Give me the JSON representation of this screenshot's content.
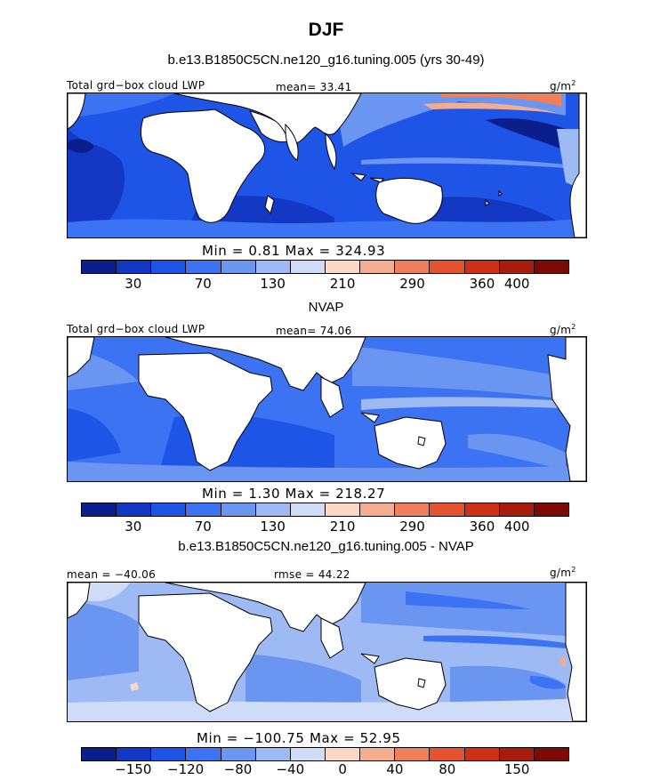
{
  "figure": {
    "title": "DJF",
    "subtitle": "b.e13.B1850C5CN.ne120_g16.tuning.005 (yrs 30-49)"
  },
  "panels": [
    {
      "label_left": "Total grd−box cloud LWP",
      "label_mid": "mean=  33.41",
      "units": "g/m",
      "units_sup": "2",
      "minmax": "Min =    0.81  Max =  324.93",
      "ticks": [
        "30",
        "70",
        "130",
        "210",
        "290",
        "360",
        "400"
      ]
    },
    {
      "title": "NVAP",
      "label_left": "Total grd−box cloud LWP",
      "label_mid": "mean=  74.06",
      "units": "g/m",
      "units_sup": "2",
      "minmax": "Min =    1.30  Max =  218.27",
      "ticks": [
        "30",
        "70",
        "130",
        "210",
        "290",
        "360",
        "400"
      ]
    },
    {
      "title": "b.e13.B1850C5CN.ne120_g16.tuning.005 - NVAP",
      "label_left": "mean = −40.06",
      "label_mid": "rmse =  44.22",
      "units": "g/m",
      "units_sup": "2",
      "minmax": "Min = −100.75  Max =   52.95",
      "ticks": [
        "−150",
        "−120",
        "−80",
        "−40",
        "0",
        "40",
        "80",
        "150"
      ]
    }
  ],
  "colors": {
    "palette": [
      "#0a1e8c",
      "#1238c4",
      "#1e55e6",
      "#3b73f2",
      "#6a96f2",
      "#9dbaf4",
      "#cfdcf8",
      "#fbd8c4",
      "#f4ad8f",
      "#ef7f5b",
      "#e4532f",
      "#cc3115",
      "#a81c0c",
      "#7d0a05"
    ],
    "land": "#ffffff",
    "coast": "#000000"
  }
}
